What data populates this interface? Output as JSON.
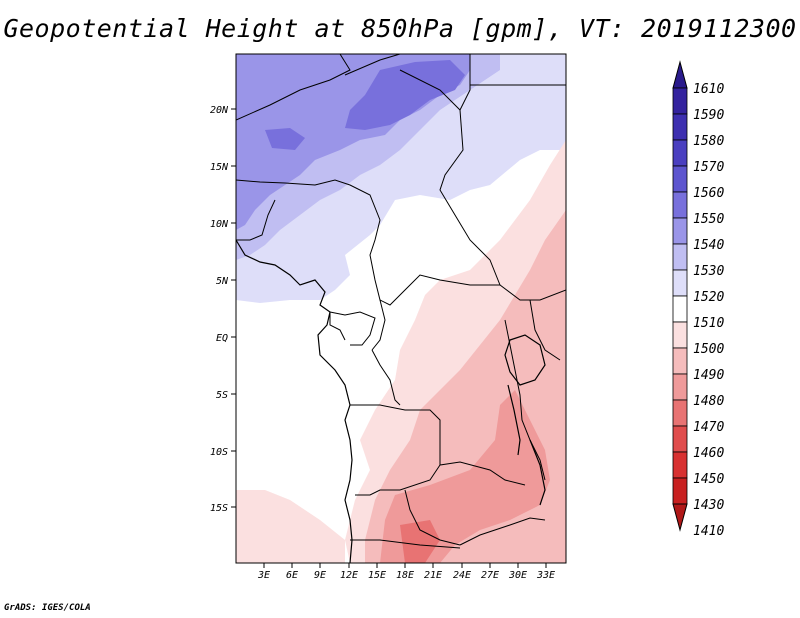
{
  "title": "Geopotential Height at 850hPa [gpm], VT: 2019112300",
  "credit": "GrADS: IGES/COLA",
  "map": {
    "lat_labels": [
      "20N",
      "15N",
      "10N",
      "5N",
      "EQ",
      "5S",
      "10S",
      "15S"
    ],
    "lon_labels": [
      "3E",
      "6E",
      "9E",
      "12E",
      "15E",
      "18E",
      "21E",
      "24E",
      "27E",
      "30E",
      "33E"
    ]
  },
  "colorbar": {
    "levels": [
      "1610",
      "1590",
      "1580",
      "1570",
      "1560",
      "1550",
      "1540",
      "1530",
      "1520",
      "1510",
      "1500",
      "1490",
      "1480",
      "1470",
      "1460",
      "1450",
      "1430",
      "1410"
    ],
    "colors": [
      "#2a1b8c",
      "#33229e",
      "#3d2fb0",
      "#4a3fc0",
      "#5d55cf",
      "#7870dc",
      "#9a95e8",
      "#c0bef2",
      "#dedef9",
      "#ffffff",
      "#fbe0e0",
      "#f5bcbc",
      "#ef9a9a",
      "#e87373",
      "#e04d4d",
      "#d83131",
      "#c82020",
      "#b01818"
    ]
  }
}
